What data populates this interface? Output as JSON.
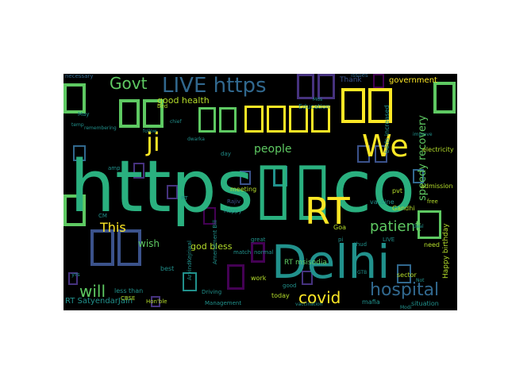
{
  "palette": {
    "background": "#000000",
    "teal": "#2ab07f",
    "green": "#5ec962",
    "yellow": "#fde725",
    "blue": "#31688e",
    "slate": "#3b528b",
    "purple": "#46327e",
    "violet": "#440154",
    "cyan": "#21918c",
    "olive": "#b5de2b"
  },
  "words": {
    "https_co": "https▯▯co",
    "delhi": "Delhi",
    "rt_big": "RT",
    "we": "We",
    "ji": "ji",
    "govt": "Govt",
    "live_https": "LIVE https",
    "hospital": "hospital",
    "covid": "covid",
    "patient": "patient",
    "will": "will",
    "this": "This",
    "people": "people",
    "good_health": "good health",
    "speedy_recovery": "speedy recovery",
    "god_bless": "god bless",
    "wish": "wish",
    "rt_satyendar": "RT SatyendarJain",
    "rt_msisodia": "RT msisodia",
    "happy_birthday": "Happy birthday",
    "government": "government",
    "thank": "Thank",
    "issues": "issues",
    "necessary": "necessary",
    "education": "Education",
    "beds_increased": "beds increased",
    "electricity": "electricity",
    "meeting": "meeting",
    "pvt": "pvt",
    "admission": "admission",
    "vaccine": "vaccine",
    "gandhi": "Gandhi",
    "goa": "Goa",
    "free": "free",
    "need": "need",
    "sector": "sector",
    "situation": "situation",
    "mafia": "mafia",
    "today": "today",
    "work": "work",
    "normal": "normal",
    "great": "great",
    "less_than": "less than",
    "best": "best",
    "cbse": "CBSE",
    "honble": "Hon'ble",
    "cm": "CM",
    "bed": "bed",
    "day": "day",
    "good": "good",
    "live": "LIVE",
    "match": "match",
    "yrs": "yrs",
    "rajiv": "Rajiv",
    "arvindkejriwal": "ArvindKejriwal",
    "amendment_bill": "Amendment Bill",
    "modi": "Modi",
    "mds": "Mds",
    "driving": "Driving",
    "management": "Management",
    "may": "May",
    "amp": "amp",
    "happy": "Happy",
    "deal": "Deal",
    "not": "Not",
    "thud": "thud",
    "follow": "follow",
    "pi": "pi",
    "vaccination": "vaccination",
    "rt_small": "RT",
    "gtb": "GTB",
    "temp": "temp",
    "chief": "chief",
    "remembering": "remembering",
    "improve": "improve",
    "dwarka": "dwarka"
  }
}
